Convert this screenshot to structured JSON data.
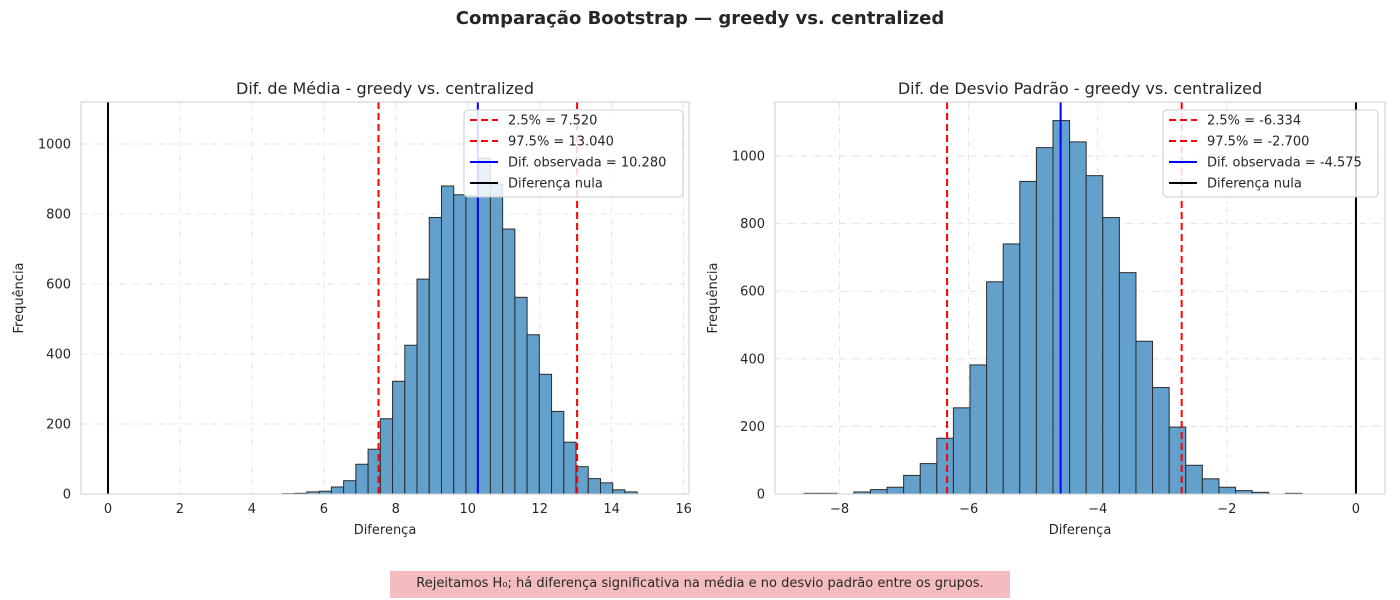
{
  "title": "Comparação Bootstrap — greedy vs. centralized",
  "note": "Rejeitamos H₀; há diferença significativa na média e no desvio padrão entre os grupos.",
  "colors": {
    "bar_fill": "#5b9bc8",
    "bar_edge": "#2b2b2b",
    "ci_line": "#ff0000",
    "observed_line": "#0000ff",
    "null_line": "#000000",
    "note_bg": "#f4bcbe"
  },
  "chart_data": [
    {
      "type": "histogram",
      "title": "Dif. de Média - greedy vs. centralized",
      "xlabel": "Diferença",
      "ylabel": "Frequência",
      "xlim": [
        -0.75,
        16.15
      ],
      "ylim": [
        0,
        1120
      ],
      "xticks": [
        0,
        2,
        4,
        6,
        8,
        10,
        12,
        14,
        16
      ],
      "yticks": [
        0,
        200,
        400,
        600,
        800,
        1000
      ],
      "grid": true,
      "legend_position": "top-right",
      "bin_edges_start": 4.85,
      "bin_width": 0.34,
      "counts": [
        1,
        2,
        6,
        8,
        20,
        38,
        85,
        128,
        215,
        322,
        425,
        614,
        790,
        880,
        855,
        852,
        960,
        885,
        757,
        562,
        455,
        342,
        236,
        148,
        78,
        44,
        32,
        12,
        6,
        0
      ],
      "lines": [
        {
          "label": "2.5% = 7.520",
          "x": 7.52,
          "style": "dashed",
          "color": "#ff0000"
        },
        {
          "label": "97.5% = 13.040",
          "x": 13.04,
          "style": "dashed",
          "color": "#ff0000"
        },
        {
          "label": "Dif. observada = 10.280",
          "x": 10.28,
          "style": "solid",
          "color": "#0000ff"
        },
        {
          "label": "Diferença nula",
          "x": 0,
          "style": "solid",
          "color": "#000000"
        }
      ]
    },
    {
      "type": "histogram",
      "title": "Dif. de Desvio Padrão - greedy vs. centralized",
      "xlabel": "Diferença",
      "ylabel": "Frequência",
      "xlim": [
        -9.0,
        0.45
      ],
      "ylim": [
        0,
        1160
      ],
      "xticks": [
        -8,
        -6,
        -4,
        -2,
        0
      ],
      "yticks": [
        0,
        200,
        400,
        600,
        800,
        1000
      ],
      "grid": true,
      "legend_position": "top-right",
      "bin_edges_start": -8.55,
      "bin_width": 0.2571,
      "counts": [
        2,
        2,
        0,
        6,
        13,
        20,
        55,
        90,
        165,
        255,
        382,
        628,
        740,
        925,
        1025,
        1105,
        1042,
        942,
        818,
        655,
        452,
        315,
        198,
        85,
        45,
        20,
        10,
        5,
        0,
        2
      ],
      "lines": [
        {
          "label": "2.5% = -6.334",
          "x": -6.334,
          "style": "dashed",
          "color": "#ff0000"
        },
        {
          "label": "97.5% = -2.700",
          "x": -2.7,
          "style": "dashed",
          "color": "#ff0000"
        },
        {
          "label": "Dif. observada = -4.575",
          "x": -4.575,
          "style": "solid",
          "color": "#0000ff"
        },
        {
          "label": "Diferença nula",
          "x": 0,
          "style": "solid",
          "color": "#000000"
        }
      ]
    }
  ]
}
